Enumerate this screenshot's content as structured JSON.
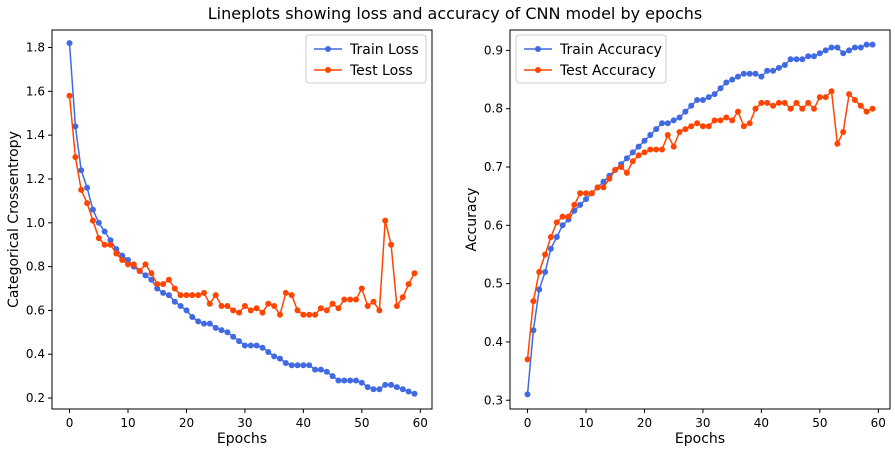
{
  "figure": {
    "title": "Lineplots showing loss and accuracy of CNN model by epochs"
  },
  "chart_data": [
    {
      "type": "line",
      "xlabel": "Epochs",
      "ylabel": "Categorical Crossentropy",
      "xlim": [
        -3,
        62
      ],
      "ylim": [
        0.15,
        1.88
      ],
      "xticks": [
        0,
        10,
        20,
        30,
        40,
        50,
        60
      ],
      "yticks": [
        0.2,
        0.4,
        0.6,
        0.8,
        1.0,
        1.2,
        1.4,
        1.6,
        1.8
      ],
      "ytick_labels": [
        "0.2",
        "0.4",
        "0.6",
        "0.8",
        "1.0",
        "1.2",
        "1.4",
        "1.6",
        "1.8"
      ],
      "legend_position": "top-right",
      "grid": false,
      "x": [
        0,
        1,
        2,
        3,
        4,
        5,
        6,
        7,
        8,
        9,
        10,
        11,
        12,
        13,
        14,
        15,
        16,
        17,
        18,
        19,
        20,
        21,
        22,
        23,
        24,
        25,
        26,
        27,
        28,
        29,
        30,
        31,
        32,
        33,
        34,
        35,
        36,
        37,
        38,
        39,
        40,
        41,
        42,
        43,
        44,
        45,
        46,
        47,
        48,
        49,
        50,
        51,
        52,
        53,
        54,
        55,
        56,
        57,
        58,
        59
      ],
      "series": [
        {
          "name": "Train Loss",
          "color": "#4169e1",
          "values": [
            1.82,
            1.44,
            1.24,
            1.16,
            1.06,
            1.0,
            0.96,
            0.92,
            0.88,
            0.85,
            0.83,
            0.8,
            0.78,
            0.76,
            0.74,
            0.7,
            0.68,
            0.67,
            0.64,
            0.62,
            0.6,
            0.57,
            0.55,
            0.54,
            0.54,
            0.52,
            0.51,
            0.5,
            0.48,
            0.46,
            0.44,
            0.44,
            0.44,
            0.43,
            0.41,
            0.39,
            0.38,
            0.36,
            0.35,
            0.35,
            0.35,
            0.35,
            0.33,
            0.33,
            0.32,
            0.3,
            0.28,
            0.28,
            0.28,
            0.28,
            0.27,
            0.25,
            0.24,
            0.24,
            0.26,
            0.26,
            0.25,
            0.24,
            0.23,
            0.22
          ]
        },
        {
          "name": "Test Loss",
          "color": "#ff4500",
          "values": [
            1.58,
            1.3,
            1.15,
            1.09,
            1.01,
            0.93,
            0.9,
            0.9,
            0.86,
            0.83,
            0.81,
            0.81,
            0.78,
            0.81,
            0.77,
            0.72,
            0.72,
            0.74,
            0.7,
            0.67,
            0.67,
            0.67,
            0.67,
            0.68,
            0.63,
            0.67,
            0.62,
            0.62,
            0.6,
            0.59,
            0.62,
            0.6,
            0.61,
            0.59,
            0.63,
            0.62,
            0.58,
            0.68,
            0.67,
            0.6,
            0.58,
            0.58,
            0.58,
            0.61,
            0.6,
            0.63,
            0.61,
            0.65,
            0.65,
            0.65,
            0.7,
            0.62,
            0.64,
            0.6,
            1.01,
            0.9,
            0.62,
            0.66,
            0.72,
            0.77
          ]
        }
      ]
    },
    {
      "type": "line",
      "xlabel": "Epochs",
      "ylabel": "Accuracy",
      "xlim": [
        -3,
        62
      ],
      "ylim": [
        0.285,
        0.935
      ],
      "xticks": [
        0,
        10,
        20,
        30,
        40,
        50,
        60
      ],
      "yticks": [
        0.3,
        0.4,
        0.5,
        0.6,
        0.7,
        0.8,
        0.9
      ],
      "ytick_labels": [
        "0.3",
        "0.4",
        "0.5",
        "0.6",
        "0.7",
        "0.8",
        "0.9"
      ],
      "legend_position": "top-left",
      "grid": false,
      "x": [
        0,
        1,
        2,
        3,
        4,
        5,
        6,
        7,
        8,
        9,
        10,
        11,
        12,
        13,
        14,
        15,
        16,
        17,
        18,
        19,
        20,
        21,
        22,
        23,
        24,
        25,
        26,
        27,
        28,
        29,
        30,
        31,
        32,
        33,
        34,
        35,
        36,
        37,
        38,
        39,
        40,
        41,
        42,
        43,
        44,
        45,
        46,
        47,
        48,
        49,
        50,
        51,
        52,
        53,
        54,
        55,
        56,
        57,
        58,
        59
      ],
      "series": [
        {
          "name": "Train Accuracy",
          "color": "#4169e1",
          "values": [
            0.31,
            0.42,
            0.49,
            0.52,
            0.56,
            0.58,
            0.6,
            0.61,
            0.625,
            0.635,
            0.645,
            0.655,
            0.665,
            0.675,
            0.685,
            0.695,
            0.705,
            0.715,
            0.725,
            0.735,
            0.745,
            0.755,
            0.765,
            0.775,
            0.775,
            0.78,
            0.785,
            0.795,
            0.805,
            0.815,
            0.815,
            0.82,
            0.825,
            0.835,
            0.845,
            0.85,
            0.855,
            0.86,
            0.86,
            0.86,
            0.855,
            0.865,
            0.865,
            0.87,
            0.875,
            0.885,
            0.885,
            0.885,
            0.89,
            0.89,
            0.895,
            0.9,
            0.905,
            0.905,
            0.895,
            0.9,
            0.905,
            0.905,
            0.91,
            0.91
          ]
        },
        {
          "name": "Test Accuracy",
          "color": "#ff4500",
          "values": [
            0.37,
            0.47,
            0.52,
            0.55,
            0.58,
            0.605,
            0.615,
            0.615,
            0.635,
            0.655,
            0.655,
            0.655,
            0.665,
            0.665,
            0.68,
            0.695,
            0.7,
            0.69,
            0.71,
            0.72,
            0.725,
            0.73,
            0.73,
            0.73,
            0.755,
            0.735,
            0.76,
            0.765,
            0.77,
            0.775,
            0.77,
            0.77,
            0.78,
            0.78,
            0.785,
            0.78,
            0.795,
            0.77,
            0.775,
            0.8,
            0.81,
            0.81,
            0.805,
            0.81,
            0.81,
            0.8,
            0.81,
            0.8,
            0.81,
            0.8,
            0.82,
            0.82,
            0.83,
            0.74,
            0.76,
            0.825,
            0.815,
            0.805,
            0.795,
            0.8
          ]
        }
      ]
    }
  ]
}
